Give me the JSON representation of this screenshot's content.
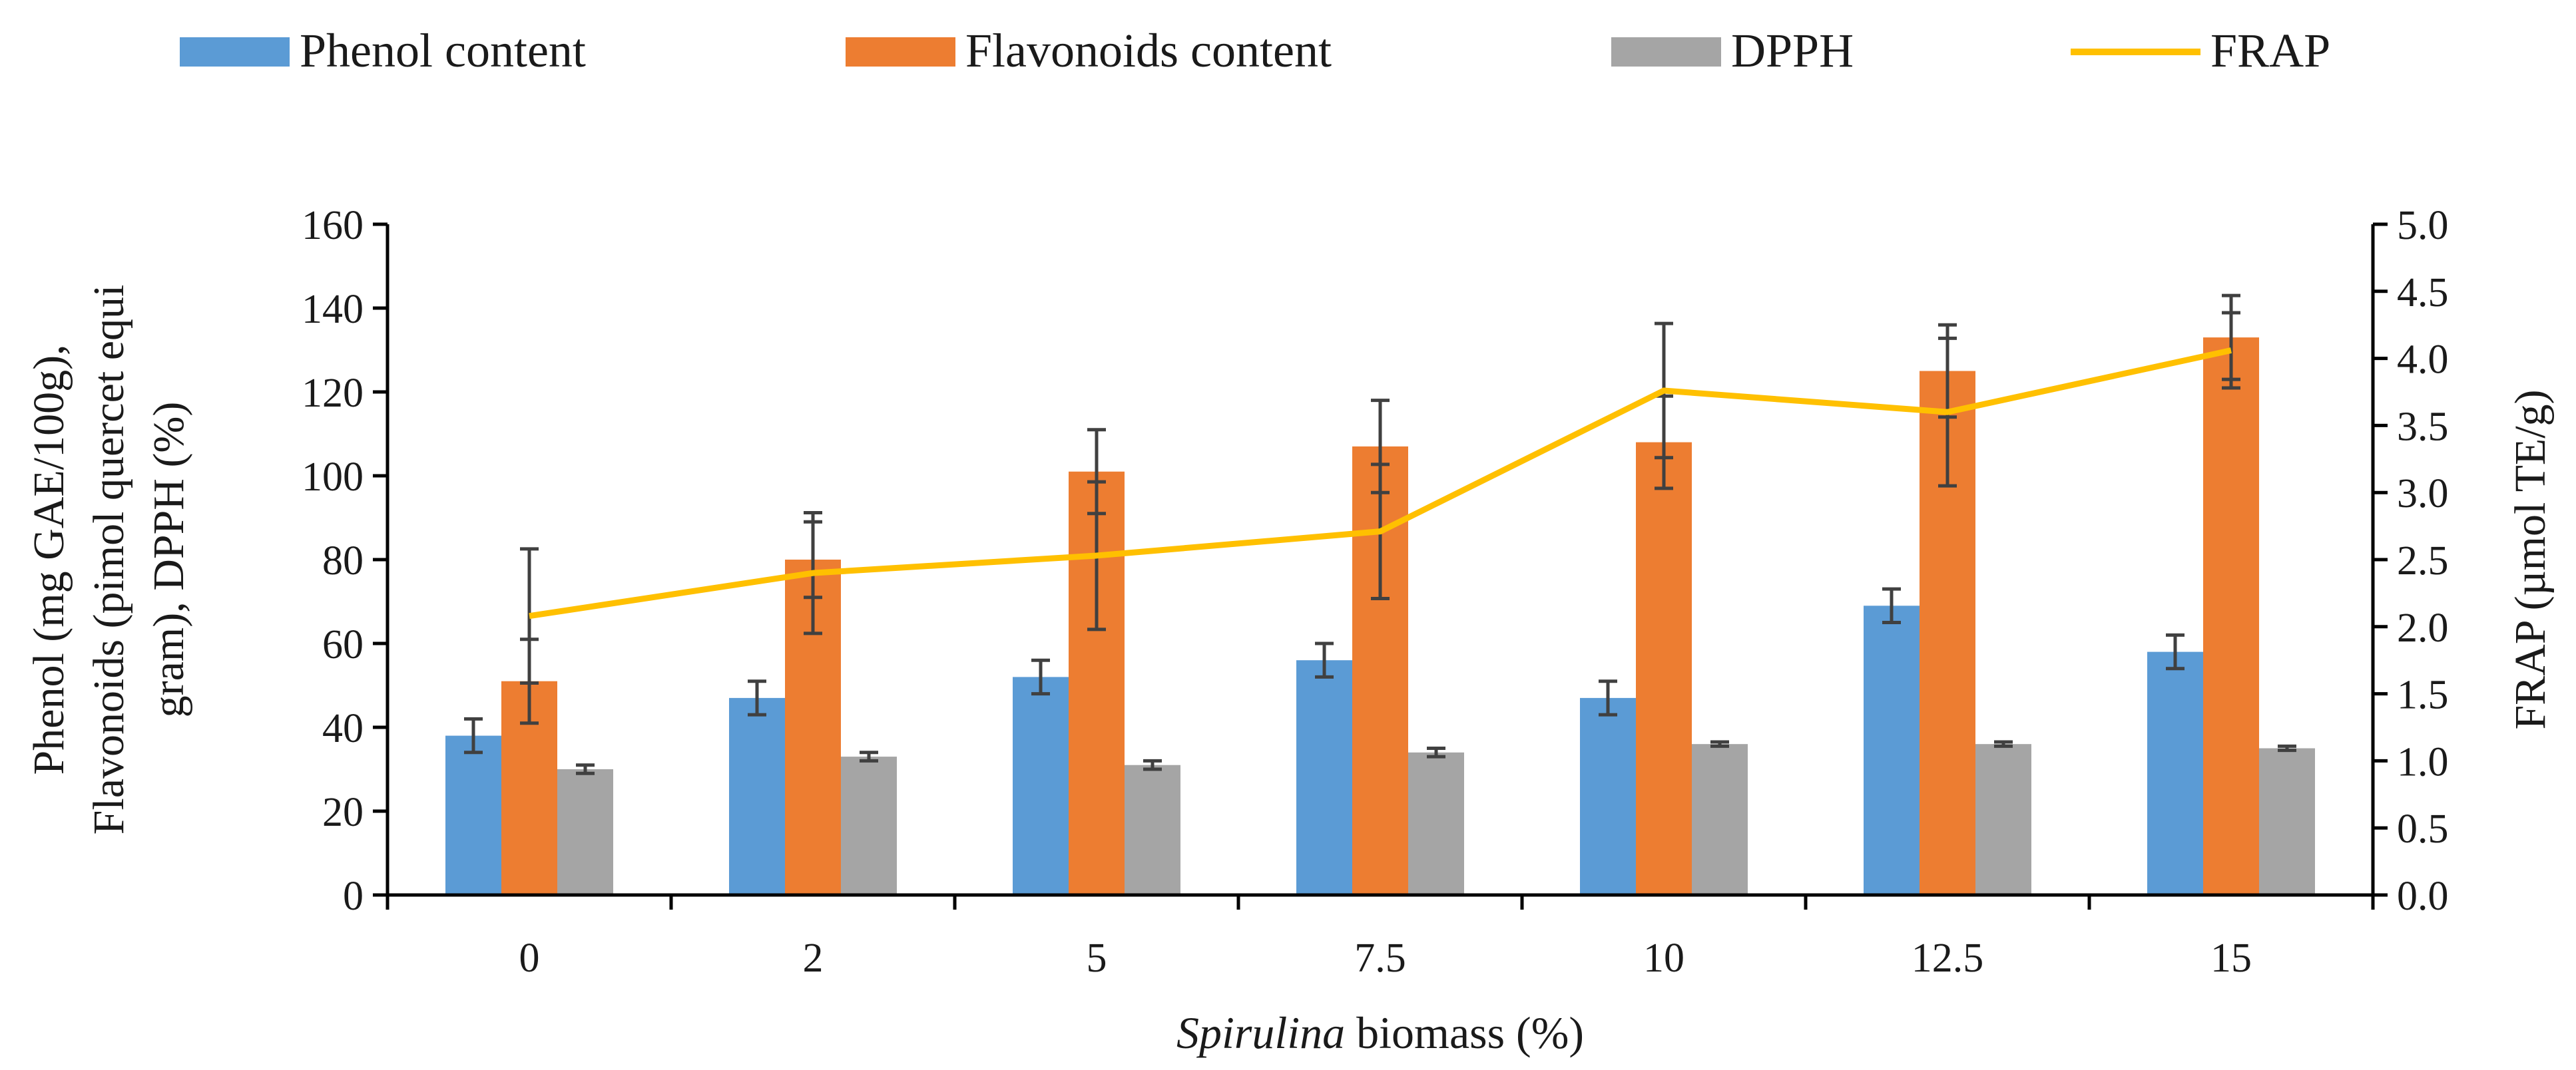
{
  "chart_data": {
    "type": "bar",
    "categories": [
      "0",
      "2",
      "5",
      "7.5",
      "10",
      "12.5",
      "15"
    ],
    "series": [
      {
        "name": "Phenol content",
        "color": "#5b9bd5",
        "axis": "left",
        "values": [
          38,
          47,
          52,
          56,
          47,
          69,
          58
        ],
        "errors": [
          4,
          4,
          4,
          4,
          4,
          4,
          4
        ]
      },
      {
        "name": "Flavonoids content",
        "color": "#ed7d31",
        "axis": "left",
        "values": [
          51,
          80,
          101,
          107,
          108,
          125,
          133
        ],
        "errors": [
          10,
          9,
          10,
          11,
          11,
          11,
          10
        ]
      },
      {
        "name": "DPPH",
        "color": "#a5a5a5",
        "axis": "left",
        "values": [
          30,
          33,
          31,
          34,
          36,
          36,
          35
        ],
        "errors": [
          1,
          1,
          1,
          1,
          0.5,
          0.5,
          0.5
        ]
      },
      {
        "name": "FRAP",
        "color": "#ffc000",
        "axis": "right",
        "type": "line",
        "values": [
          2.08,
          2.4,
          2.53,
          2.71,
          3.76,
          3.6,
          4.06
        ],
        "errors": [
          0.5,
          0.45,
          0.55,
          0.5,
          0.5,
          0.55,
          0.28
        ]
      }
    ],
    "xlabel_italic": "Spirulina",
    "xlabel_rest": " biomass (%)",
    "ylabel_lines": [
      "Phenol (mg GAE/100g),",
      "Flavonoids (pimol quercet equi",
      "gram), DPPH (%)"
    ],
    "y2label": "FRAP (µmol TE/g)",
    "ylim": [
      0,
      160
    ],
    "yticks": [
      "0",
      "20",
      "40",
      "60",
      "80",
      "100",
      "120",
      "140",
      "160"
    ],
    "y2lim": [
      0,
      5
    ],
    "y2ticks": [
      "0.0",
      "0.5",
      "1.0",
      "1.5",
      "2.0",
      "2.5",
      "3.0",
      "3.5",
      "4.0",
      "4.5",
      "5.0"
    ],
    "legend_position": "top",
    "grid": false
  }
}
